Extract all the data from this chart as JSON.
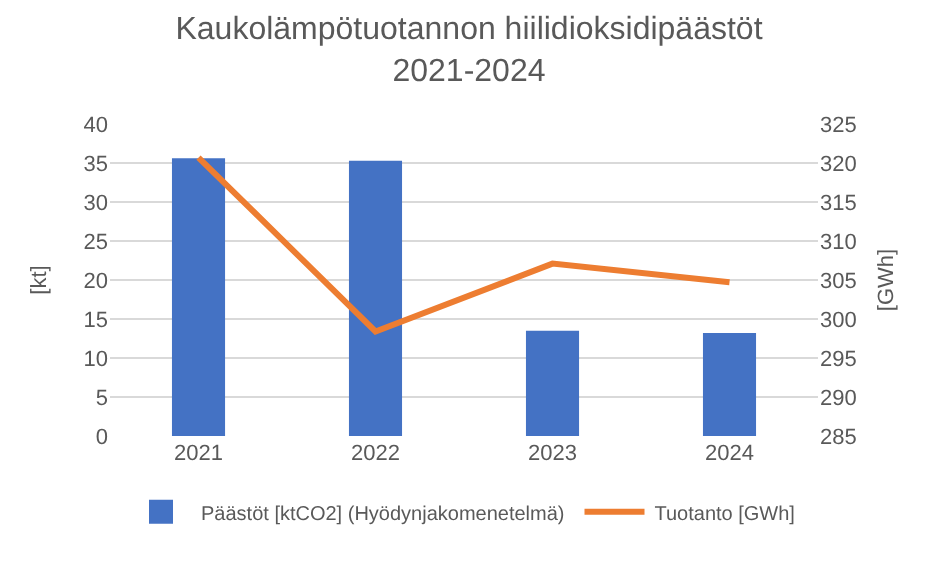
{
  "chart_data": {
    "type": "bar",
    "title": "Kaukolämpötuotannon hiilidioksidipäästöt\n2021-2024",
    "categories": [
      "2021",
      "2022",
      "2023",
      "2024"
    ],
    "series": [
      {
        "name": "Päästöt [ktCO2] (Hyödynjakomenetelmä)",
        "color": "#4472c4",
        "values": [
          35.6,
          35.3,
          13.5,
          13.2
        ]
      },
      {
        "name": "Tuotanto [GWh]",
        "type": "line",
        "axis": "y2",
        "color": "#ed7d31",
        "values": [
          320.7,
          298.4,
          307.1,
          304.7
        ]
      }
    ],
    "ylabel": "[kt]",
    "y2label": "[GWh]",
    "ylim": [
      0,
      40
    ],
    "yticks": [
      0,
      5,
      10,
      15,
      20,
      25,
      30,
      35,
      40
    ],
    "y2lim": [
      285,
      325
    ],
    "y2ticks": [
      285,
      290,
      295,
      300,
      305,
      310,
      315,
      320,
      325
    ],
    "grid": "y",
    "legend": "bottom",
    "marker": "none",
    "line_style": "solid"
  }
}
